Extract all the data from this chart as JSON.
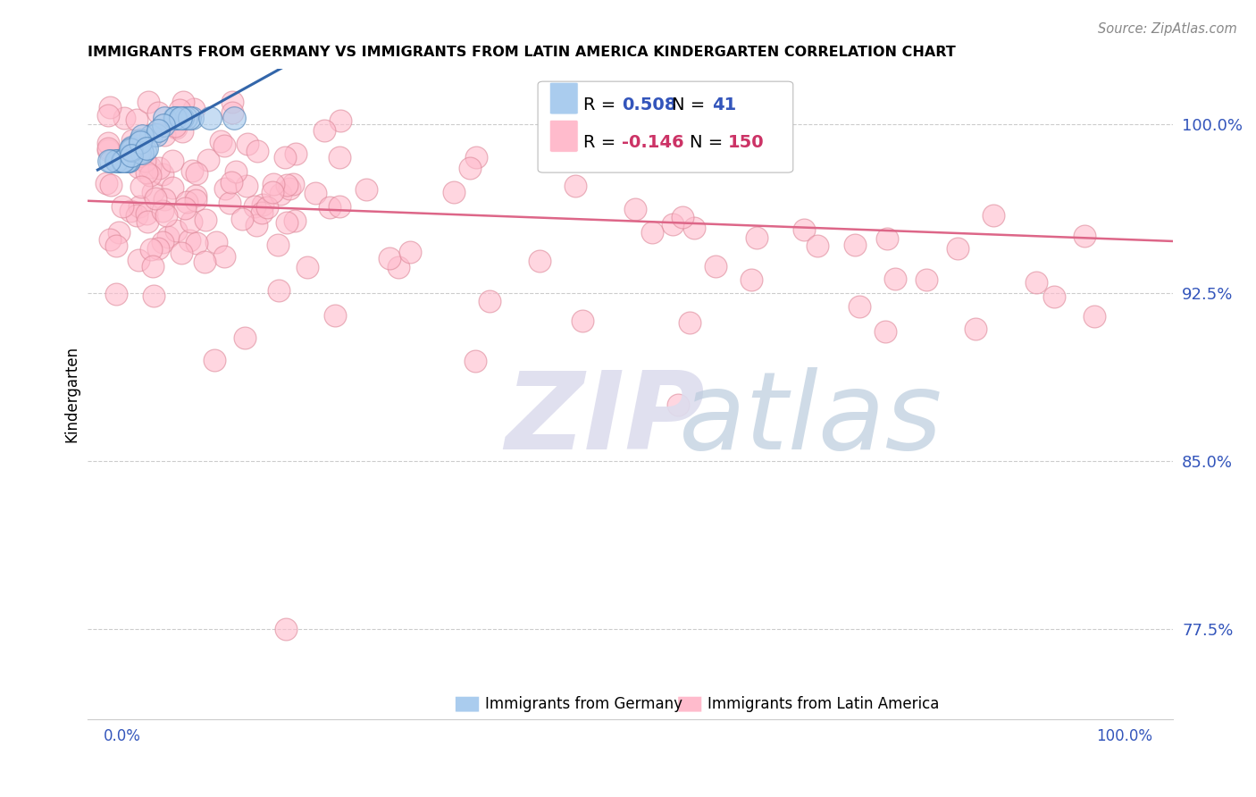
{
  "title": "IMMIGRANTS FROM GERMANY VS IMMIGRANTS FROM LATIN AMERICA KINDERGARTEN CORRELATION CHART",
  "source": "Source: ZipAtlas.com",
  "ylabel": "Kindergarten",
  "yticks": [
    0.775,
    0.85,
    0.925,
    1.0
  ],
  "ytick_labels": [
    "77.5%",
    "85.0%",
    "92.5%",
    "100.0%"
  ],
  "ylim": [
    0.735,
    1.025
  ],
  "xlim": [
    -0.015,
    1.02
  ],
  "legend_blue_r_val": "0.508",
  "legend_blue_n_val": "41",
  "legend_pink_r_val": "-0.146",
  "legend_pink_n_val": "150",
  "blue_color": "#AACCEE",
  "blue_edge_color": "#5588BB",
  "blue_line_color": "#3366AA",
  "pink_color": "#FFBBCC",
  "pink_edge_color": "#DD8899",
  "pink_line_color": "#DD6688",
  "watermark_zip_color": "#DDDDEE",
  "watermark_atlas_color": "#BBCCDD",
  "blue_r": 0.508,
  "blue_n": 41,
  "pink_r": -0.146,
  "pink_n": 150,
  "blue_seed": 42,
  "pink_seed": 7
}
